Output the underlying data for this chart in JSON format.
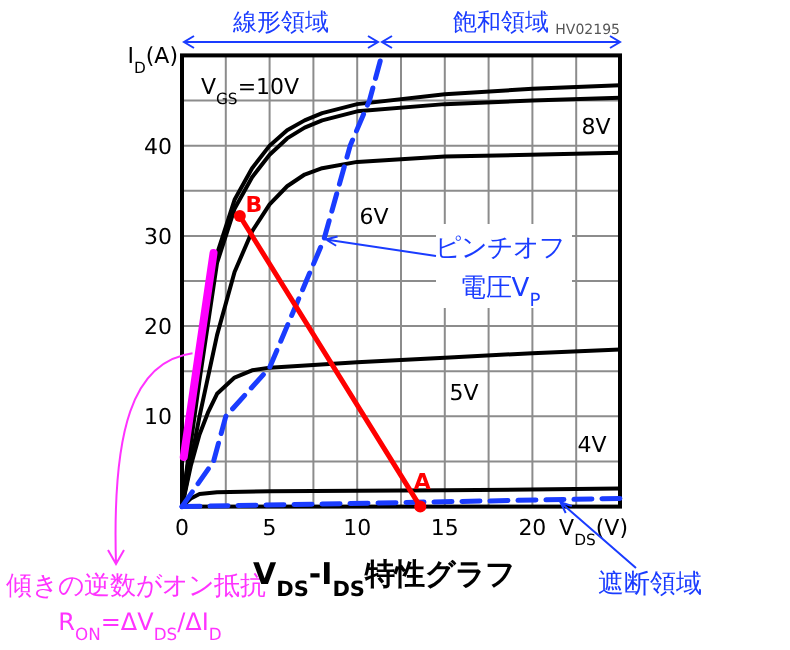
{
  "chart_data": {
    "type": "line",
    "title": "V$_{DS}$-I$_{DS}$特性グラフ",
    "xlabel": "V$_{DS}$(V)",
    "ylabel": "I$_{D}$(A)",
    "xlim": [
      0,
      25
    ],
    "ylim": [
      0,
      50
    ],
    "xticks": [
      0,
      {
        "value": 2.5,
        "label": null
      },
      5,
      {
        "value": 7.5,
        "label": null
      },
      10,
      {
        "value": 12.5,
        "label": null
      },
      15,
      {
        "value": 17.5,
        "label": null
      },
      20,
      {
        "value": 22.5,
        "label": null
      },
      {
        "value": 25,
        "label": null
      }
    ],
    "yticks": [
      {
        "value": 5,
        "label": null
      },
      10,
      {
        "value": 15,
        "label": null
      },
      20,
      {
        "value": 25,
        "label": null
      },
      30,
      {
        "value": 35,
        "label": null
      },
      40,
      {
        "value": 45,
        "label": null
      },
      {
        "value": 50,
        "label": null
      }
    ],
    "grid": true,
    "series": [
      {
        "color": "#000000",
        "line_style": "solid",
        "x": [
          0,
          1,
          2,
          3,
          4,
          5,
          6,
          7,
          8,
          10,
          15,
          20,
          25
        ],
        "values": [
          0,
          15,
          28,
          34,
          37.5,
          40,
          41.7,
          42.8,
          43.6,
          44.6,
          45.7,
          46.3,
          46.7
        ]
      },
      {
        "color": "#000000",
        "line_style": "solid",
        "x": [
          0,
          1,
          2,
          3,
          4,
          5,
          6,
          7,
          8,
          10,
          15,
          20,
          25
        ],
        "values": [
          0,
          14,
          27,
          33,
          36.5,
          39,
          40.8,
          42,
          42.8,
          43.8,
          44.6,
          45,
          45.3
        ]
      },
      {
        "color": "#000000",
        "line_style": "solid",
        "x": [
          0,
          1,
          2,
          3,
          4,
          5,
          6,
          7,
          8,
          10,
          15,
          25
        ],
        "values": [
          0,
          10,
          19,
          26,
          30.5,
          33.5,
          35.5,
          36.8,
          37.5,
          38.2,
          38.8,
          39.2
        ]
      },
      {
        "color": "#000000",
        "line_style": "solid",
        "x": [
          0,
          0.5,
          1,
          1.5,
          2,
          3,
          4,
          5,
          10,
          15,
          20,
          25
        ],
        "values": [
          0,
          4.5,
          8,
          10.5,
          12.5,
          14.3,
          15.1,
          15.4,
          16,
          16.5,
          17,
          17.4
        ]
      },
      {
        "color": "#000000",
        "line_style": "solid",
        "x": [
          0,
          0.5,
          1,
          2,
          5,
          15,
          25
        ],
        "values": [
          0,
          0.9,
          1.4,
          1.6,
          1.7,
          1.8,
          2
        ]
      },
      {
        "color": "#1a3cff",
        "line_style": "dashed",
        "x": [
          0,
          1.8,
          2.5,
          5,
          6,
          8.1,
          9.6,
          10.7,
          11.4
        ],
        "values": [
          0,
          5,
          10,
          15.4,
          20,
          29.6,
          40,
          45,
          50
        ]
      },
      {
        "color": "#1a3cff",
        "line_style": "dashed",
        "x": [
          0,
          25
        ],
        "values": [
          0,
          0.9
        ]
      },
      {
        "color": "#ff0000",
        "line_style": "solid",
        "marker": "circle",
        "x": [
          3.3,
          13.6
        ],
        "values": [
          32.2,
          0
        ]
      },
      {
        "color": "#ff00ff",
        "line_style": "solid",
        "x": [
          0.1,
          1.8
        ],
        "values": [
          5.5,
          28.1
        ]
      }
    ],
    "annotations": [
      "HV02195",
      "V$_{GS}$=10V",
      "8V",
      "6V",
      "5V",
      "4V",
      {
        "text": "B",
        "x": 3.3,
        "y": 32.2
      },
      {
        "text": "A",
        "x": 13.6,
        "y": 0
      },
      {
        "text": "ピンチオフ",
        "x": 8.1,
        "y": 29.6
      },
      "電圧V$_{P}$",
      {
        "text": "遮断領域",
        "x": 21.6,
        "y": 0.7
      },
      {
        "text": "傾きの逆数がオン抵抗",
        "x": 0.6,
        "y": 17
      },
      "R$_{ON}$=ΔV$_{DS}$/ΔI$_{D}$",
      "線形領域",
      "飽和領域"
    ]
  }
}
